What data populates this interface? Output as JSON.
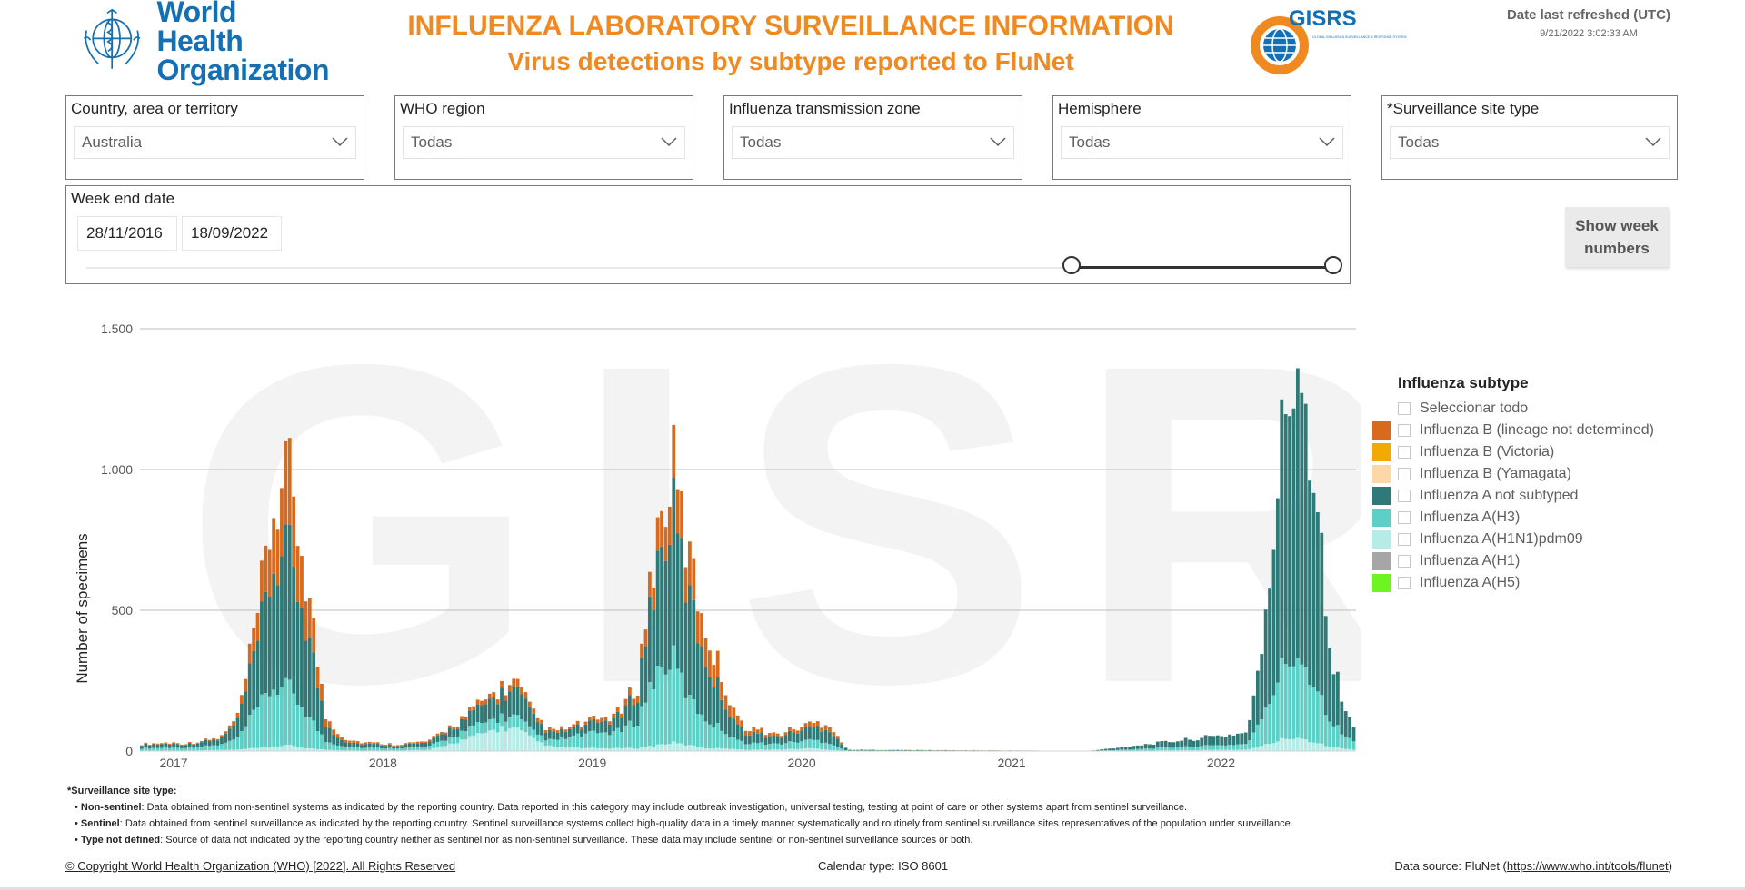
{
  "header": {
    "org_name_line1": "World Health",
    "org_name_line2": "Organization",
    "title": "INFLUENZA LABORATORY SURVEILLANCE INFORMATION",
    "subtitle": "Virus detections by subtype reported to FluNet",
    "gisrs_name": "GISRS",
    "gisrs_tagline": "GLOBAL INFLUENZA SURVEILLANCE & RESPONSE SYSTEM",
    "refresh_label": "Date last refreshed (UTC)",
    "refresh_value": "9/21/2022 3:02:33 AM"
  },
  "filters": [
    {
      "label": "Country, area or territory",
      "value": "Australia"
    },
    {
      "label": "WHO region",
      "value": "Todas"
    },
    {
      "label": "Influenza transmission zone",
      "value": "Todas"
    },
    {
      "label": "Hemisphere",
      "value": "Todas"
    },
    {
      "label": "*Surveillance site type",
      "value": "Todas"
    }
  ],
  "week_end_date": {
    "label": "Week end date",
    "start": "28/11/2016",
    "end": "18/09/2022"
  },
  "show_week_button": "Show week numbers",
  "chart_data": {
    "type": "bar",
    "stacked": true,
    "watermark": "GISRS",
    "ylabel": "Number of specimens",
    "xlabel": "",
    "ylim": [
      0,
      1500
    ],
    "y_ticks": [
      0,
      500,
      1000,
      1500
    ],
    "y_tick_labels": [
      "0",
      "500",
      "1.000",
      "1.500"
    ],
    "x_tick_labels": [
      "2017",
      "2018",
      "2019",
      "2020",
      "2021",
      "2022"
    ],
    "grid": true,
    "legend_position": "right",
    "peaks": [
      {
        "period": "2017 season peak",
        "x": "2017-08",
        "total": 970
      },
      {
        "period": "2018 season peak",
        "x": "2018-09",
        "total": 240
      },
      {
        "period": "2019 season peak",
        "x": "2019-06",
        "total": 1010
      },
      {
        "period": "2020 early peak",
        "x": "2020-03",
        "total": 100
      },
      {
        "period": "2022 season peak",
        "x": "2022-06",
        "total": 1450
      }
    ],
    "series": [
      {
        "name": "Influenza B (lineage not determined)",
        "color": "#d86a1e"
      },
      {
        "name": "Influenza B (Victoria)",
        "color": "#f2a900"
      },
      {
        "name": "Influenza B (Yamagata)",
        "color": "#fbd8a6"
      },
      {
        "name": "Influenza A not subtyped",
        "color": "#2e7a78"
      },
      {
        "name": "Influenza A(H3)",
        "color": "#5ccfc6"
      },
      {
        "name": "Influenza A(H1N1)pdm09",
        "color": "#b6ece8"
      },
      {
        "name": "Influenza A(H1)",
        "color": "#a6a6a6"
      },
      {
        "name": "Influenza A(H5)",
        "color": "#6cf51e"
      }
    ],
    "weeks": [
      {
        "x": "2016-11-28",
        "parts": [
          3,
          0,
          0,
          12,
          8,
          2,
          0,
          0
        ]
      },
      {
        "x": "2017-01",
        "parts": [
          4,
          0,
          0,
          14,
          10,
          2,
          0,
          0
        ]
      },
      {
        "x": "2017-02",
        "parts": [
          3,
          0,
          0,
          12,
          10,
          2,
          0,
          0
        ]
      },
      {
        "x": "2017-03",
        "parts": [
          4,
          0,
          0,
          16,
          14,
          3,
          0,
          0
        ]
      },
      {
        "x": "2017-04",
        "parts": [
          5,
          0,
          0,
          20,
          18,
          4,
          0,
          0
        ]
      },
      {
        "x": "2017-05",
        "parts": [
          15,
          0,
          0,
          60,
          40,
          5,
          0,
          0
        ]
      },
      {
        "x": "2017-06",
        "parts": [
          80,
          0,
          0,
          200,
          130,
          10,
          0,
          0
        ]
      },
      {
        "x": "2017-07",
        "parts": [
          200,
          0,
          0,
          420,
          210,
          15,
          0,
          0
        ]
      },
      {
        "x": "2017-08",
        "parts": [
          270,
          0,
          0,
          480,
          200,
          20,
          0,
          0
        ]
      },
      {
        "x": "2017-09",
        "parts": [
          150,
          0,
          0,
          300,
          120,
          10,
          0,
          0
        ]
      },
      {
        "x": "2017-10",
        "parts": [
          30,
          0,
          0,
          60,
          30,
          5,
          0,
          0
        ]
      },
      {
        "x": "2017-11",
        "parts": [
          10,
          0,
          0,
          20,
          15,
          3,
          0,
          0
        ]
      },
      {
        "x": "2017-12",
        "parts": [
          6,
          0,
          0,
          14,
          10,
          2,
          0,
          0
        ]
      },
      {
        "x": "2018-02",
        "parts": [
          4,
          0,
          0,
          10,
          8,
          2,
          0,
          0
        ]
      },
      {
        "x": "2018-04",
        "parts": [
          5,
          0,
          0,
          14,
          12,
          4,
          0,
          0
        ]
      },
      {
        "x": "2018-06",
        "parts": [
          10,
          0,
          0,
          40,
          30,
          40,
          0,
          0
        ]
      },
      {
        "x": "2018-08",
        "parts": [
          20,
          0,
          0,
          80,
          40,
          80,
          0,
          0
        ]
      },
      {
        "x": "2018-09",
        "parts": [
          25,
          0,
          0,
          95,
          40,
          80,
          0,
          0
        ]
      },
      {
        "x": "2018-10",
        "parts": [
          15,
          0,
          0,
          50,
          25,
          40,
          0,
          0
        ]
      },
      {
        "x": "2018-11",
        "parts": [
          8,
          0,
          0,
          25,
          20,
          15,
          0,
          0
        ]
      },
      {
        "x": "2019-01",
        "parts": [
          10,
          0,
          0,
          30,
          50,
          10,
          0,
          0
        ]
      },
      {
        "x": "2019-03",
        "parts": [
          15,
          0,
          0,
          50,
          60,
          10,
          0,
          0
        ]
      },
      {
        "x": "2019-04",
        "parts": [
          30,
          0,
          0,
          100,
          100,
          10,
          0,
          0
        ]
      },
      {
        "x": "2019-05",
        "parts": [
          100,
          0,
          0,
          350,
          250,
          20,
          0,
          0
        ]
      },
      {
        "x": "2019-06",
        "parts": [
          160,
          0,
          0,
          520,
          300,
          30,
          0,
          0
        ]
      },
      {
        "x": "2019-07",
        "parts": [
          140,
          0,
          0,
          350,
          160,
          20,
          0,
          0
        ]
      },
      {
        "x": "2019-08",
        "parts": [
          110,
          0,
          0,
          200,
          100,
          10,
          0,
          0
        ]
      },
      {
        "x": "2019-09",
        "parts": [
          60,
          0,
          0,
          100,
          60,
          10,
          0,
          0
        ]
      },
      {
        "x": "2019-10",
        "parts": [
          20,
          0,
          0,
          40,
          25,
          5,
          0,
          0
        ]
      },
      {
        "x": "2019-12",
        "parts": [
          8,
          0,
          0,
          25,
          20,
          5,
          0,
          0
        ]
      },
      {
        "x": "2020-02",
        "parts": [
          15,
          0,
          0,
          45,
          30,
          10,
          0,
          0
        ]
      },
      {
        "x": "2020-03",
        "parts": [
          20,
          0,
          0,
          50,
          25,
          5,
          0,
          0
        ]
      },
      {
        "x": "2020-04",
        "parts": [
          1,
          0,
          0,
          3,
          1,
          0,
          0,
          0
        ]
      },
      {
        "x": "2021-06",
        "parts": [
          0,
          0,
          0,
          1,
          0,
          0,
          0,
          0
        ]
      },
      {
        "x": "2022-03",
        "parts": [
          0,
          0,
          0,
          40,
          20,
          5,
          0,
          0
        ]
      },
      {
        "x": "2022-04",
        "parts": [
          0,
          0,
          0,
          250,
          100,
          20,
          0,
          0
        ]
      },
      {
        "x": "2022-05",
        "parts": [
          0,
          0,
          0,
          800,
          250,
          40,
          0,
          0
        ]
      },
      {
        "x": "2022-06",
        "parts": [
          0,
          0,
          0,
          1100,
          300,
          50,
          0,
          0
        ]
      },
      {
        "x": "2022-07",
        "parts": [
          0,
          0,
          0,
          700,
          200,
          30,
          0,
          0
        ]
      },
      {
        "x": "2022-08",
        "parts": [
          0,
          0,
          0,
          200,
          80,
          15,
          0,
          0
        ]
      },
      {
        "x": "2022-09",
        "parts": [
          0,
          0,
          0,
          50,
          30,
          5,
          0,
          0
        ]
      }
    ]
  },
  "legend": {
    "title": "Influenza subtype",
    "select_all": "Seleccionar todo",
    "items": [
      {
        "label": "Influenza B (lineage not determined)",
        "color": "#d86a1e"
      },
      {
        "label": "Influenza B (Victoria)",
        "color": "#f2a900"
      },
      {
        "label": "Influenza B (Yamagata)",
        "color": "#fbd8a6"
      },
      {
        "label": "Influenza A not subtyped",
        "color": "#2e7a78"
      },
      {
        "label": "Influenza A(H3)",
        "color": "#5ccfc6"
      },
      {
        "label": "Influenza A(H1N1)pdm09",
        "color": "#b6ece8"
      },
      {
        "label": "Influenza A(H1)",
        "color": "#a6a6a6"
      },
      {
        "label": "Influenza A(H5)",
        "color": "#6cf51e"
      }
    ]
  },
  "notes": {
    "title": "*Surveillance site type:",
    "items": [
      {
        "term": "Non-sentinel",
        "text": ": Data obtained from non-sentinel systems as indicated by the reporting country. Data reported in this category may include outbreak investigation, universal testing, testing at point of care or other systems apart from sentinel surveillance."
      },
      {
        "term": "Sentinel",
        "text": ": Data obtained from sentinel surveillance as indicated by the reporting country. Sentinel surveillance systems collect high-quality data in a timely manner systematically and routinely from sentinel surveillance sites representatives of the population under surveillance."
      },
      {
        "term": "Type not defined",
        "text": ": Source of data not indicated by the reporting country neither as sentinel nor as non-sentinel surveillance. These data may include sentinel or non-sentinel surveillance sources or both."
      }
    ]
  },
  "footer": {
    "copyright": "© Copyright World Health Organization (WHO) [2022]. All Rights Reserved",
    "calendar": "Calendar type: ISO 8601",
    "datasource_prefix": "Data source: FluNet (",
    "datasource_link": "https://www.who.int/tools/flunet",
    "datasource_suffix": ")"
  }
}
